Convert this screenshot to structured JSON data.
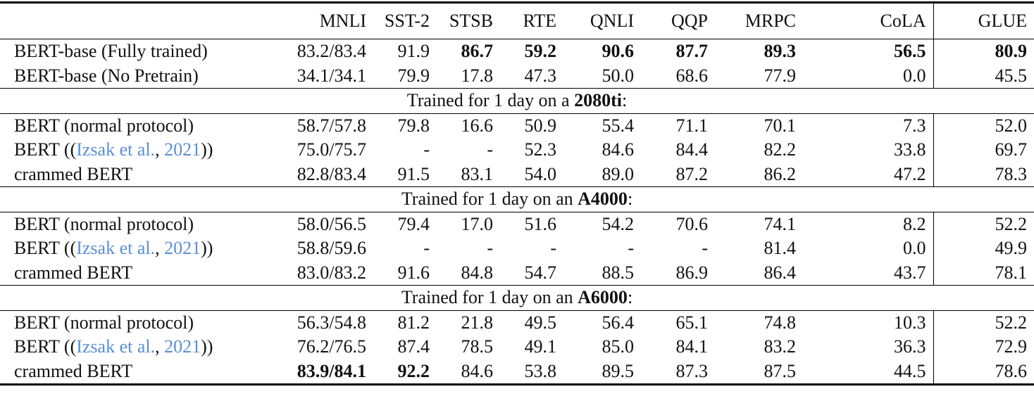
{
  "table": {
    "columns": [
      "MNLI",
      "SST-2",
      "STSB",
      "RTE",
      "QNLI",
      "QQP",
      "MRPC",
      "CoLA",
      "GLUE"
    ],
    "groups": [
      {
        "rows": [
          {
            "label": "BERT-base (Fully trained)",
            "cells": [
              "83.2/83.4",
              "91.9",
              "86.7",
              "59.2",
              "90.6",
              "87.7",
              "89.3",
              "56.5",
              "80.9"
            ],
            "bold": [
              2,
              3,
              4,
              5,
              6,
              7,
              8
            ]
          },
          {
            "label": "BERT-base (No Pretrain)",
            "cells": [
              "34.1/34.1",
              "79.9",
              "17.8",
              "47.3",
              "50.0",
              "68.6",
              "77.9",
              "0.0",
              "45.5"
            ]
          }
        ]
      },
      {
        "heading": {
          "text": "Trained for 1 day on a",
          "device": "2080ti",
          "suffix": ":"
        },
        "rows": [
          {
            "label": "BERT (normal protocol)",
            "cells": [
              "58.7/57.8",
              "79.8",
              "16.6",
              "50.9",
              "55.4",
              "71.1",
              "70.1",
              "7.3",
              "52.0"
            ]
          },
          {
            "label": "BERT ((",
            "cite": [
              "Izsak et al.",
              ", ",
              "2021"
            ],
            "label_end": "))",
            "cells": [
              "75.0/75.7",
              "-",
              "-",
              "52.3",
              "84.6",
              "84.4",
              "82.2",
              "33.8",
              "69.7"
            ]
          },
          {
            "label": "crammed BERT",
            "cells": [
              "82.8/83.4",
              "91.5",
              "83.1",
              "54.0",
              "89.0",
              "87.2",
              "86.2",
              "47.2",
              "78.3"
            ]
          }
        ]
      },
      {
        "heading": {
          "text": "Trained for 1 day on an",
          "device": "A4000",
          "suffix": ":"
        },
        "rows": [
          {
            "label": "BERT (normal protocol)",
            "cells": [
              "58.0/56.5",
              "79.4",
              "17.0",
              "51.6",
              "54.2",
              "70.6",
              "74.1",
              "8.2",
              "52.2"
            ]
          },
          {
            "label": "BERT ((",
            "cite": [
              "Izsak et al.",
              ", ",
              "2021"
            ],
            "label_end": "))",
            "cells": [
              "58.8/59.6",
              "-",
              "-",
              "-",
              "-",
              "-",
              "81.4",
              "0.0",
              "49.9"
            ]
          },
          {
            "label": "crammed BERT",
            "cells": [
              "83.0/83.2",
              "91.6",
              "84.8",
              "54.7",
              "88.5",
              "86.9",
              "86.4",
              "43.7",
              "78.1"
            ]
          }
        ]
      },
      {
        "heading": {
          "text": "Trained for 1 day on an",
          "device": "A6000",
          "suffix": ":"
        },
        "rows": [
          {
            "label": "BERT (normal protocol)",
            "cells": [
              "56.3/54.8",
              "81.2",
              "21.8",
              "49.5",
              "56.4",
              "65.1",
              "74.8",
              "10.3",
              "52.2"
            ]
          },
          {
            "label": "BERT ((",
            "cite": [
              "Izsak et al.",
              ", ",
              "2021"
            ],
            "label_end": "))",
            "cells": [
              "76.2/76.5",
              "87.4",
              "78.5",
              "49.1",
              "85.0",
              "84.1",
              "83.2",
              "36.3",
              "72.9"
            ]
          },
          {
            "label": "crammed BERT",
            "cells": [
              "83.9/84.1",
              "92.2",
              "84.6",
              "53.8",
              "89.5",
              "87.3",
              "87.5",
              "44.5",
              "78.6"
            ],
            "bold": [
              0,
              1
            ]
          }
        ]
      }
    ]
  }
}
